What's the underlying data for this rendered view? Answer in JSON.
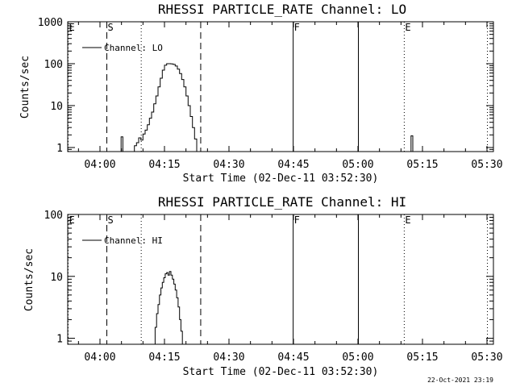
{
  "footer": {
    "timestamp": "22-Oct-2021 23:19"
  },
  "chart_data": [
    {
      "type": "line",
      "title": "RHESSI PARTICLE_RATE Channel: LO",
      "xlabel": "Start Time (02-Dec-11 03:52:30)",
      "ylabel": "Counts/sec",
      "y_scale": "log",
      "xlim": [
        0,
        5940
      ],
      "ylim": [
        0.8,
        1000
      ],
      "x_ticks": [
        {
          "t": 450,
          "label": "04:00"
        },
        {
          "t": 1350,
          "label": "04:15"
        },
        {
          "t": 2250,
          "label": "04:30"
        },
        {
          "t": 3150,
          "label": "04:45"
        },
        {
          "t": 4050,
          "label": "05:00"
        },
        {
          "t": 4950,
          "label": "05:15"
        },
        {
          "t": 5850,
          "label": "05:30"
        }
      ],
      "y_ticks": [
        {
          "v": 1,
          "label": "1"
        },
        {
          "v": 10,
          "label": "10"
        },
        {
          "v": 100,
          "label": "100"
        },
        {
          "v": 1000,
          "label": "1000"
        }
      ],
      "legend": {
        "position": "top-left",
        "label": "Channel: LO"
      },
      "markers": [
        {
          "t": 0,
          "label": "E",
          "style": "dotted"
        },
        {
          "t": 540,
          "label": "S",
          "style": "dashed"
        },
        {
          "t": 1020,
          "label": "",
          "style": "dotted"
        },
        {
          "t": 1850,
          "label": "",
          "style": "dashed"
        },
        {
          "t": 3140,
          "label": "F",
          "style": "solid"
        },
        {
          "t": 4050,
          "label": "",
          "style": "solid"
        },
        {
          "t": 4690,
          "label": "E",
          "style": "dotted"
        },
        {
          "t": 5850,
          "label": "",
          "style": "dotted"
        }
      ],
      "series": [
        {
          "values": [
            [
              720,
              0.8
            ],
            [
              745,
              1.8
            ],
            [
              770,
              0.8
            ],
            [
              900,
              0.8
            ],
            [
              930,
              1.1
            ],
            [
              960,
              1.3
            ],
            [
              990,
              1.7
            ],
            [
              1020,
              1.5
            ],
            [
              1050,
              2.1
            ],
            [
              1080,
              2.6
            ],
            [
              1110,
              3.5
            ],
            [
              1140,
              5
            ],
            [
              1170,
              7
            ],
            [
              1200,
              11
            ],
            [
              1230,
              17
            ],
            [
              1260,
              28
            ],
            [
              1290,
              45
            ],
            [
              1320,
              70
            ],
            [
              1350,
              92
            ],
            [
              1380,
              100
            ],
            [
              1410,
              100
            ],
            [
              1440,
              99
            ],
            [
              1470,
              96
            ],
            [
              1500,
              88
            ],
            [
              1530,
              74
            ],
            [
              1560,
              58
            ],
            [
              1590,
              42
            ],
            [
              1620,
              28
            ],
            [
              1650,
              17
            ],
            [
              1680,
              10
            ],
            [
              1710,
              5.5
            ],
            [
              1740,
              3
            ],
            [
              1770,
              1.6
            ],
            [
              1800,
              0.8
            ],
            [
              4760,
              0.8
            ],
            [
              4790,
              1.9
            ],
            [
              4815,
              0.8
            ]
          ]
        }
      ]
    },
    {
      "type": "line",
      "title": "RHESSI PARTICLE_RATE Channel: HI",
      "xlabel": "Start Time (02-Dec-11 03:52:30)",
      "ylabel": "Counts/sec",
      "y_scale": "log",
      "xlim": [
        0,
        5940
      ],
      "ylim": [
        0.8,
        100
      ],
      "x_ticks": [
        {
          "t": 450,
          "label": "04:00"
        },
        {
          "t": 1350,
          "label": "04:15"
        },
        {
          "t": 2250,
          "label": "04:30"
        },
        {
          "t": 3150,
          "label": "04:45"
        },
        {
          "t": 4050,
          "label": "05:00"
        },
        {
          "t": 4950,
          "label": "05:15"
        },
        {
          "t": 5850,
          "label": "05:30"
        }
      ],
      "y_ticks": [
        {
          "v": 1,
          "label": "1"
        },
        {
          "v": 10,
          "label": "10"
        },
        {
          "v": 100,
          "label": "100"
        }
      ],
      "legend": {
        "position": "top-left",
        "label": "Channel: HI"
      },
      "markers": [
        {
          "t": 0,
          "label": "E",
          "style": "dotted"
        },
        {
          "t": 540,
          "label": "S",
          "style": "dashed"
        },
        {
          "t": 1020,
          "label": "",
          "style": "dotted"
        },
        {
          "t": 1850,
          "label": "",
          "style": "dashed"
        },
        {
          "t": 3140,
          "label": "F",
          "style": "solid"
        },
        {
          "t": 4050,
          "label": "",
          "style": "solid"
        },
        {
          "t": 4690,
          "label": "E",
          "style": "dotted"
        },
        {
          "t": 5850,
          "label": "",
          "style": "dotted"
        }
      ],
      "series": [
        {
          "values": [
            [
              1200,
              0.8
            ],
            [
              1220,
              1.5
            ],
            [
              1240,
              2.5
            ],
            [
              1260,
              3.5
            ],
            [
              1280,
              5
            ],
            [
              1300,
              6.5
            ],
            [
              1320,
              8
            ],
            [
              1340,
              9.5
            ],
            [
              1360,
              11
            ],
            [
              1380,
              11.5
            ],
            [
              1400,
              10.5
            ],
            [
              1420,
              12
            ],
            [
              1440,
              10.5
            ],
            [
              1460,
              9
            ],
            [
              1480,
              7.5
            ],
            [
              1500,
              6
            ],
            [
              1520,
              4.5
            ],
            [
              1540,
              3.2
            ],
            [
              1560,
              2
            ],
            [
              1580,
              1.3
            ],
            [
              1600,
              0.8
            ]
          ]
        }
      ]
    }
  ]
}
